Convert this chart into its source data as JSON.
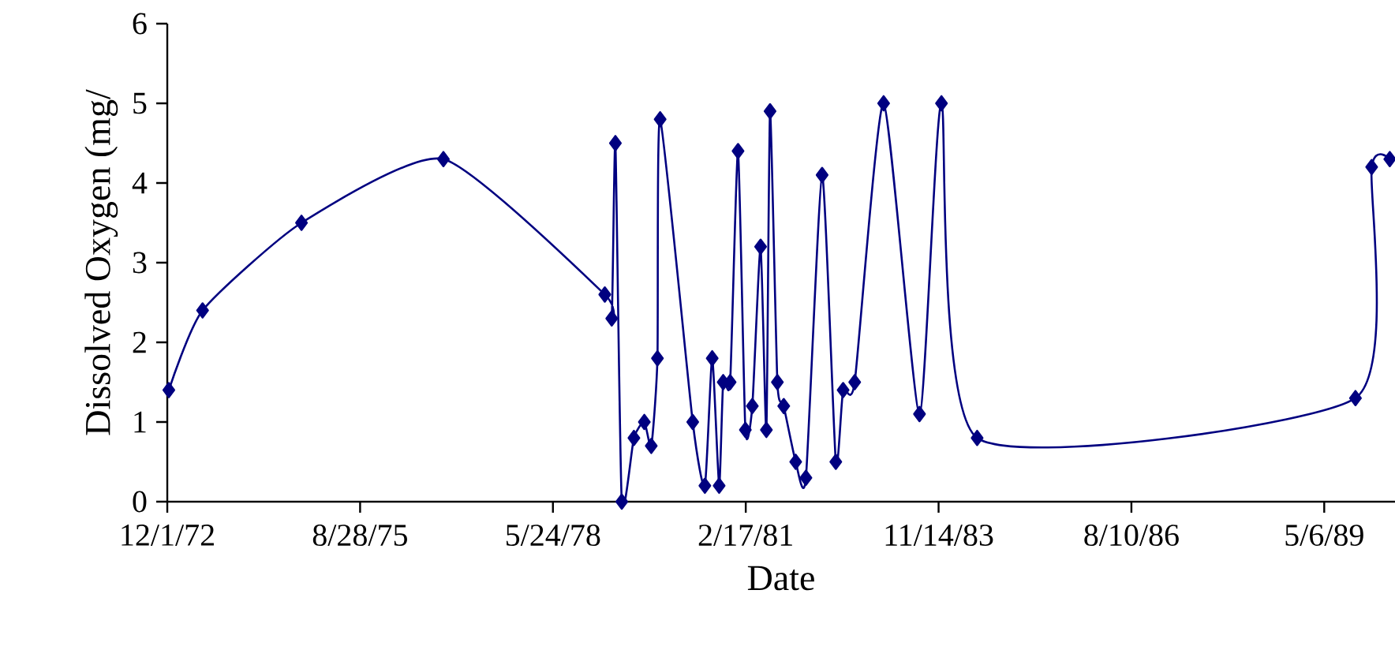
{
  "chart_data": {
    "type": "line",
    "xlabel": "Date",
    "ylabel": "Dissolved Oxygen (mg/",
    "x": [
      "1972-12-09",
      "1973-06-02",
      "1974-10-28",
      "1976-11-02",
      "1979-02-17",
      "1979-03-25",
      "1979-04-13",
      "1979-05-16",
      "1979-07-18",
      "1979-09-10",
      "1979-10-16",
      "1979-11-17",
      "1979-12-01",
      "1980-05-18",
      "1980-07-20",
      "1980-08-27",
      "1980-10-02",
      "1980-10-23",
      "1980-11-28",
      "1981-01-08",
      "1981-02-15",
      "1981-03-23",
      "1981-05-05",
      "1981-06-04",
      "1981-06-23",
      "1981-07-31",
      "1981-09-02",
      "1981-11-03",
      "1981-12-26",
      "1982-03-20",
      "1982-05-30",
      "1982-07-07",
      "1982-09-05",
      "1983-02-02",
      "1983-08-07",
      "1983-11-29",
      "1984-06-01",
      "1989-10-15",
      "1990-01-07",
      "1990-04-11"
    ],
    "series": [
      {
        "color": "#000080",
        "values": [
          1.4,
          2.4,
          3.5,
          4.3,
          2.6,
          2.3,
          4.5,
          0,
          0.8,
          1.0,
          0.7,
          1.8,
          4.8,
          1.0,
          0.2,
          1.8,
          0.2,
          1.5,
          1.5,
          4.4,
          0.9,
          1.2,
          3.2,
          0.9,
          4.9,
          1.5,
          1.2,
          0.5,
          0.3,
          4.1,
          0.5,
          1.4,
          1.5,
          5.0,
          1.1,
          5.0,
          0.8,
          1.3,
          4.2,
          4.3
        ]
      }
    ],
    "xlim": [
      "1972-12-01",
      "1990-05-08"
    ],
    "xticks": [
      {
        "value": "1972-12-01",
        "label": "12/1/72"
      },
      {
        "value": "1975-08-28",
        "label": "8/28/75"
      },
      {
        "value": "1978-05-24",
        "label": "5/24/78"
      },
      {
        "value": "1981-02-17",
        "label": "2/17/81"
      },
      {
        "value": "1983-11-14",
        "label": "11/14/83"
      },
      {
        "value": "1986-08-10",
        "label": "8/10/86"
      },
      {
        "value": "1989-05-06",
        "label": "5/6/89"
      }
    ],
    "ylim": [
      0,
      6
    ],
    "yticks": [
      0,
      1,
      2,
      3,
      4,
      5,
      6
    ],
    "marker": "diamond",
    "line_style": "solid",
    "grid": false,
    "legend": false
  }
}
